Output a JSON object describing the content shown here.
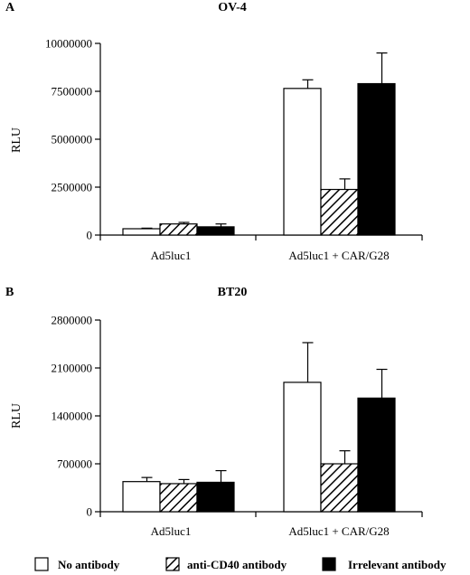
{
  "chart_data": [
    {
      "type": "bar",
      "panel": "A",
      "title": "OV-4",
      "ylabel": "RLU",
      "xlabel": "",
      "ylim": [
        0,
        10000000
      ],
      "yticks": [
        "0",
        "2500000",
        "5000000",
        "7500000",
        "10000000"
      ],
      "categories": [
        "Ad5luc1",
        "Ad5luc1 + CAR/G28"
      ],
      "series": [
        {
          "name": "No antibody",
          "values": [
            330000,
            7650000
          ],
          "errors": [
            30000,
            450000
          ]
        },
        {
          "name": "anti-CD40 antibody",
          "values": [
            580000,
            2380000
          ],
          "errors": [
            80000,
            550000
          ]
        },
        {
          "name": "Irrelevant antibody",
          "values": [
            430000,
            7900000
          ],
          "errors": [
            150000,
            1600000
          ]
        }
      ]
    },
    {
      "type": "bar",
      "panel": "B",
      "title": "BT20",
      "ylabel": "RLU",
      "xlabel": "",
      "ylim": [
        0,
        2800000
      ],
      "yticks": [
        "0",
        "700000",
        "1400000",
        "2100000",
        "2800000"
      ],
      "categories": [
        "Ad5luc1",
        "Ad5luc1 + CAR/G28"
      ],
      "series": [
        {
          "name": "No antibody",
          "values": [
            440000,
            1890000
          ],
          "errors": [
            60000,
            580000
          ]
        },
        {
          "name": "anti-CD40 antibody",
          "values": [
            410000,
            700000
          ],
          "errors": [
            60000,
            190000
          ]
        },
        {
          "name": "Irrelevant antibody",
          "values": [
            430000,
            1660000
          ],
          "errors": [
            170000,
            420000
          ]
        }
      ]
    }
  ],
  "legend": {
    "position": "bottom",
    "items": [
      {
        "label": "No antibody",
        "style": "white"
      },
      {
        "label": "anti-CD40 antibody",
        "style": "hatch"
      },
      {
        "label": "Irrelevant antibody",
        "style": "black"
      }
    ]
  }
}
